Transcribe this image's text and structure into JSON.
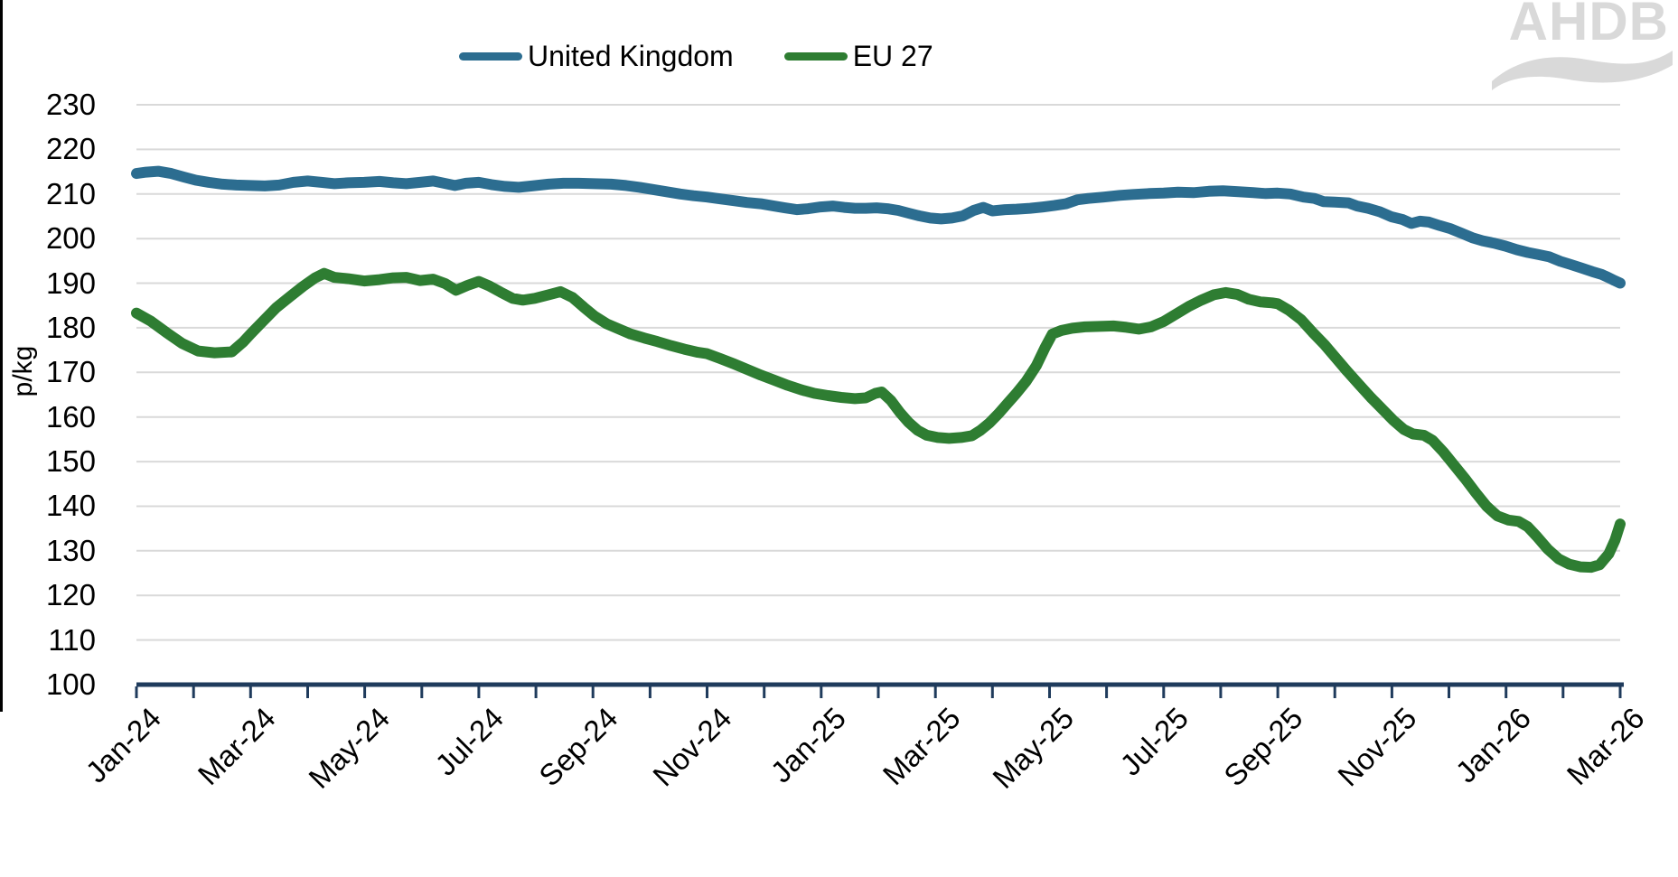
{
  "logo": {
    "text": "AHDB"
  },
  "legend": {
    "items": [
      {
        "id": "uk",
        "label": "United Kingdom"
      },
      {
        "id": "eu",
        "label": "EU 27"
      }
    ]
  },
  "chart_data": {
    "type": "line",
    "title": "",
    "xlabel": "",
    "ylabel": "p/kg",
    "ylim": [
      100,
      230
    ],
    "grid": true,
    "legend_position": "top",
    "colors": {
      "uk": "#2c6d90",
      "eu": "#2e7d32",
      "axis": "#1f3b5c",
      "gridline": "#d9d9d9",
      "logo": "#d9d9d9"
    },
    "y_axis": {
      "ticks": [
        230,
        220,
        210,
        200,
        190,
        180,
        170,
        160,
        150,
        140,
        130,
        120,
        110,
        100
      ]
    },
    "x_axis": {
      "labels": [
        "Jan-24",
        "Mar-24",
        "May-24",
        "Jul-24",
        "Sep-24",
        "Nov-24",
        "Jan-25",
        "Mar-25",
        "May-25",
        "Jul-25",
        "Sep-25",
        "Nov-25",
        "Jan-26",
        "Mar-26"
      ],
      "months_span": 26,
      "tick_every_months": 1,
      "label_every_months": 2
    },
    "series": [
      {
        "id": "uk",
        "name": "United Kingdom",
        "color": "#2c6d90",
        "points": [
          [
            0,
            214.6
          ],
          [
            0.17,
            214.9
          ],
          [
            0.38,
            215.1
          ],
          [
            0.61,
            214.6
          ],
          [
            0.83,
            213.8
          ],
          [
            1.04,
            213.1
          ],
          [
            1.27,
            212.6
          ],
          [
            1.51,
            212.2
          ],
          [
            1.75,
            212.0
          ],
          [
            2.0,
            211.9
          ],
          [
            2.25,
            211.8
          ],
          [
            2.5,
            212.0
          ],
          [
            2.75,
            212.6
          ],
          [
            3.0,
            212.9
          ],
          [
            3.24,
            212.6
          ],
          [
            3.47,
            212.3
          ],
          [
            3.71,
            212.5
          ],
          [
            3.99,
            212.6
          ],
          [
            4.26,
            212.8
          ],
          [
            4.5,
            212.5
          ],
          [
            4.73,
            212.3
          ],
          [
            4.97,
            212.6
          ],
          [
            5.2,
            212.9
          ],
          [
            5.39,
            212.4
          ],
          [
            5.58,
            211.9
          ],
          [
            5.77,
            212.4
          ],
          [
            6.0,
            212.6
          ],
          [
            6.22,
            212.1
          ],
          [
            6.46,
            211.7
          ],
          [
            6.7,
            211.5
          ],
          [
            6.93,
            211.8
          ],
          [
            7.22,
            212.2
          ],
          [
            7.48,
            212.4
          ],
          [
            7.75,
            212.4
          ],
          [
            8.03,
            212.3
          ],
          [
            8.32,
            212.2
          ],
          [
            8.58,
            211.9
          ],
          [
            8.82,
            211.5
          ],
          [
            9.05,
            211.0
          ],
          [
            9.29,
            210.5
          ],
          [
            9.53,
            210.0
          ],
          [
            9.76,
            209.6
          ],
          [
            10.0,
            209.3
          ],
          [
            10.23,
            208.9
          ],
          [
            10.47,
            208.5
          ],
          [
            10.7,
            208.1
          ],
          [
            10.94,
            207.8
          ],
          [
            11.17,
            207.3
          ],
          [
            11.36,
            206.9
          ],
          [
            11.57,
            206.5
          ],
          [
            11.77,
            206.7
          ],
          [
            11.99,
            207.1
          ],
          [
            12.2,
            207.3
          ],
          [
            12.4,
            207.0
          ],
          [
            12.59,
            206.8
          ],
          [
            12.78,
            206.8
          ],
          [
            12.97,
            206.9
          ],
          [
            13.16,
            206.7
          ],
          [
            13.35,
            206.3
          ],
          [
            13.53,
            205.7
          ],
          [
            13.72,
            205.1
          ],
          [
            13.91,
            204.6
          ],
          [
            14.1,
            204.4
          ],
          [
            14.29,
            204.6
          ],
          [
            14.48,
            205.1
          ],
          [
            14.67,
            206.3
          ],
          [
            14.84,
            207.0
          ],
          [
            15.0,
            206.2
          ],
          [
            15.22,
            206.5
          ],
          [
            15.42,
            206.6
          ],
          [
            15.66,
            206.8
          ],
          [
            15.89,
            207.1
          ],
          [
            16.08,
            207.4
          ],
          [
            16.29,
            207.8
          ],
          [
            16.49,
            208.7
          ],
          [
            16.68,
            209.0
          ],
          [
            16.95,
            209.3
          ],
          [
            17.23,
            209.7
          ],
          [
            17.46,
            209.9
          ],
          [
            17.75,
            210.1
          ],
          [
            18.0,
            210.2
          ],
          [
            18.25,
            210.4
          ],
          [
            18.52,
            210.3
          ],
          [
            18.79,
            210.6
          ],
          [
            19.04,
            210.7
          ],
          [
            19.31,
            210.5
          ],
          [
            19.57,
            210.3
          ],
          [
            19.79,
            210.1
          ],
          [
            20.0,
            210.2
          ],
          [
            20.22,
            210.0
          ],
          [
            20.45,
            209.3
          ],
          [
            20.64,
            209.0
          ],
          [
            20.8,
            208.3
          ],
          [
            21.0,
            208.2
          ],
          [
            21.24,
            208.0
          ],
          [
            21.39,
            207.3
          ],
          [
            21.58,
            206.8
          ],
          [
            21.79,
            206.0
          ],
          [
            21.99,
            204.9
          ],
          [
            22.18,
            204.3
          ],
          [
            22.34,
            203.4
          ],
          [
            22.49,
            203.9
          ],
          [
            22.65,
            203.7
          ],
          [
            22.84,
            202.9
          ],
          [
            23.03,
            202.2
          ],
          [
            23.22,
            201.2
          ],
          [
            23.41,
            200.2
          ],
          [
            23.59,
            199.5
          ],
          [
            23.78,
            199.0
          ],
          [
            23.99,
            198.3
          ],
          [
            24.19,
            197.5
          ],
          [
            24.38,
            196.9
          ],
          [
            24.57,
            196.4
          ],
          [
            24.76,
            195.9
          ],
          [
            24.95,
            194.9
          ],
          [
            25.13,
            194.2
          ],
          [
            25.32,
            193.4
          ],
          [
            25.51,
            192.6
          ],
          [
            25.67,
            192.0
          ],
          [
            25.79,
            191.3
          ],
          [
            25.9,
            190.6
          ],
          [
            26.0,
            190.0
          ]
        ]
      },
      {
        "id": "eu",
        "name": "EU 27",
        "color": "#2e7d32",
        "points": [
          [
            0,
            183.3
          ],
          [
            0.25,
            181.5
          ],
          [
            0.52,
            179.0
          ],
          [
            0.8,
            176.5
          ],
          [
            1.08,
            174.8
          ],
          [
            1.37,
            174.4
          ],
          [
            1.67,
            174.6
          ],
          [
            1.87,
            176.8
          ],
          [
            2.0,
            178.6
          ],
          [
            2.22,
            181.5
          ],
          [
            2.45,
            184.5
          ],
          [
            2.69,
            187.0
          ],
          [
            2.92,
            189.3
          ],
          [
            3.13,
            191.2
          ],
          [
            3.29,
            192.2
          ],
          [
            3.47,
            191.3
          ],
          [
            3.71,
            191.0
          ],
          [
            3.99,
            190.5
          ],
          [
            4.26,
            190.8
          ],
          [
            4.5,
            191.2
          ],
          [
            4.73,
            191.3
          ],
          [
            4.97,
            190.6
          ],
          [
            5.2,
            190.9
          ],
          [
            5.41,
            189.9
          ],
          [
            5.6,
            188.4
          ],
          [
            5.8,
            189.5
          ],
          [
            6.0,
            190.4
          ],
          [
            6.18,
            189.4
          ],
          [
            6.38,
            188.0
          ],
          [
            6.59,
            186.6
          ],
          [
            6.77,
            186.2
          ],
          [
            6.98,
            186.6
          ],
          [
            7.22,
            187.4
          ],
          [
            7.43,
            188.1
          ],
          [
            7.64,
            186.8
          ],
          [
            7.84,
            184.6
          ],
          [
            8.03,
            182.6
          ],
          [
            8.24,
            180.9
          ],
          [
            8.44,
            179.8
          ],
          [
            8.66,
            178.6
          ],
          [
            8.9,
            177.7
          ],
          [
            9.13,
            176.9
          ],
          [
            9.37,
            176.0
          ],
          [
            9.6,
            175.2
          ],
          [
            9.84,
            174.5
          ],
          [
            10.0,
            174.2
          ],
          [
            10.23,
            173.1
          ],
          [
            10.47,
            171.9
          ],
          [
            10.7,
            170.7
          ],
          [
            10.94,
            169.4
          ],
          [
            11.17,
            168.3
          ],
          [
            11.41,
            167.1
          ],
          [
            11.65,
            166.1
          ],
          [
            11.88,
            165.3
          ],
          [
            12.12,
            164.8
          ],
          [
            12.35,
            164.4
          ],
          [
            12.59,
            164.1
          ],
          [
            12.78,
            164.3
          ],
          [
            12.95,
            165.3
          ],
          [
            13.06,
            165.6
          ],
          [
            13.22,
            163.7
          ],
          [
            13.38,
            161.0
          ],
          [
            13.53,
            158.8
          ],
          [
            13.69,
            157.0
          ],
          [
            13.85,
            155.9
          ],
          [
            14.04,
            155.4
          ],
          [
            14.24,
            155.2
          ],
          [
            14.45,
            155.4
          ],
          [
            14.64,
            155.8
          ],
          [
            14.79,
            157.0
          ],
          [
            14.95,
            158.7
          ],
          [
            15.11,
            160.8
          ],
          [
            15.26,
            163.0
          ],
          [
            15.42,
            165.3
          ],
          [
            15.59,
            168.0
          ],
          [
            15.77,
            171.5
          ],
          [
            15.92,
            175.5
          ],
          [
            16.05,
            178.6
          ],
          [
            16.21,
            179.4
          ],
          [
            16.4,
            179.9
          ],
          [
            16.62,
            180.2
          ],
          [
            16.87,
            180.3
          ],
          [
            17.12,
            180.4
          ],
          [
            17.35,
            180.1
          ],
          [
            17.57,
            179.7
          ],
          [
            17.78,
            180.2
          ],
          [
            18.0,
            181.4
          ],
          [
            18.22,
            183.1
          ],
          [
            18.44,
            184.8
          ],
          [
            18.66,
            186.2
          ],
          [
            18.88,
            187.4
          ],
          [
            19.09,
            187.9
          ],
          [
            19.29,
            187.5
          ],
          [
            19.49,
            186.4
          ],
          [
            19.7,
            185.8
          ],
          [
            19.9,
            185.6
          ],
          [
            20.0,
            185.4
          ],
          [
            20.2,
            183.9
          ],
          [
            20.41,
            181.8
          ],
          [
            20.61,
            179.0
          ],
          [
            20.82,
            176.2
          ],
          [
            21.02,
            173.2
          ],
          [
            21.22,
            170.2
          ],
          [
            21.43,
            167.2
          ],
          [
            21.63,
            164.4
          ],
          [
            21.83,
            161.8
          ],
          [
            22.02,
            159.3
          ],
          [
            22.21,
            157.2
          ],
          [
            22.37,
            156.2
          ],
          [
            22.56,
            155.9
          ],
          [
            22.71,
            154.8
          ],
          [
            22.9,
            152.2
          ],
          [
            23.09,
            149.2
          ],
          [
            23.28,
            146.2
          ],
          [
            23.47,
            143.0
          ],
          [
            23.66,
            140.0
          ],
          [
            23.85,
            137.8
          ],
          [
            24.04,
            136.9
          ],
          [
            24.22,
            136.6
          ],
          [
            24.38,
            135.4
          ],
          [
            24.54,
            133.2
          ],
          [
            24.73,
            130.4
          ],
          [
            24.92,
            128.2
          ],
          [
            25.11,
            127.0
          ],
          [
            25.3,
            126.4
          ],
          [
            25.49,
            126.3
          ],
          [
            25.64,
            126.9
          ],
          [
            25.8,
            129.3
          ],
          [
            25.91,
            132.4
          ],
          [
            26.0,
            136.0
          ]
        ]
      }
    ]
  }
}
